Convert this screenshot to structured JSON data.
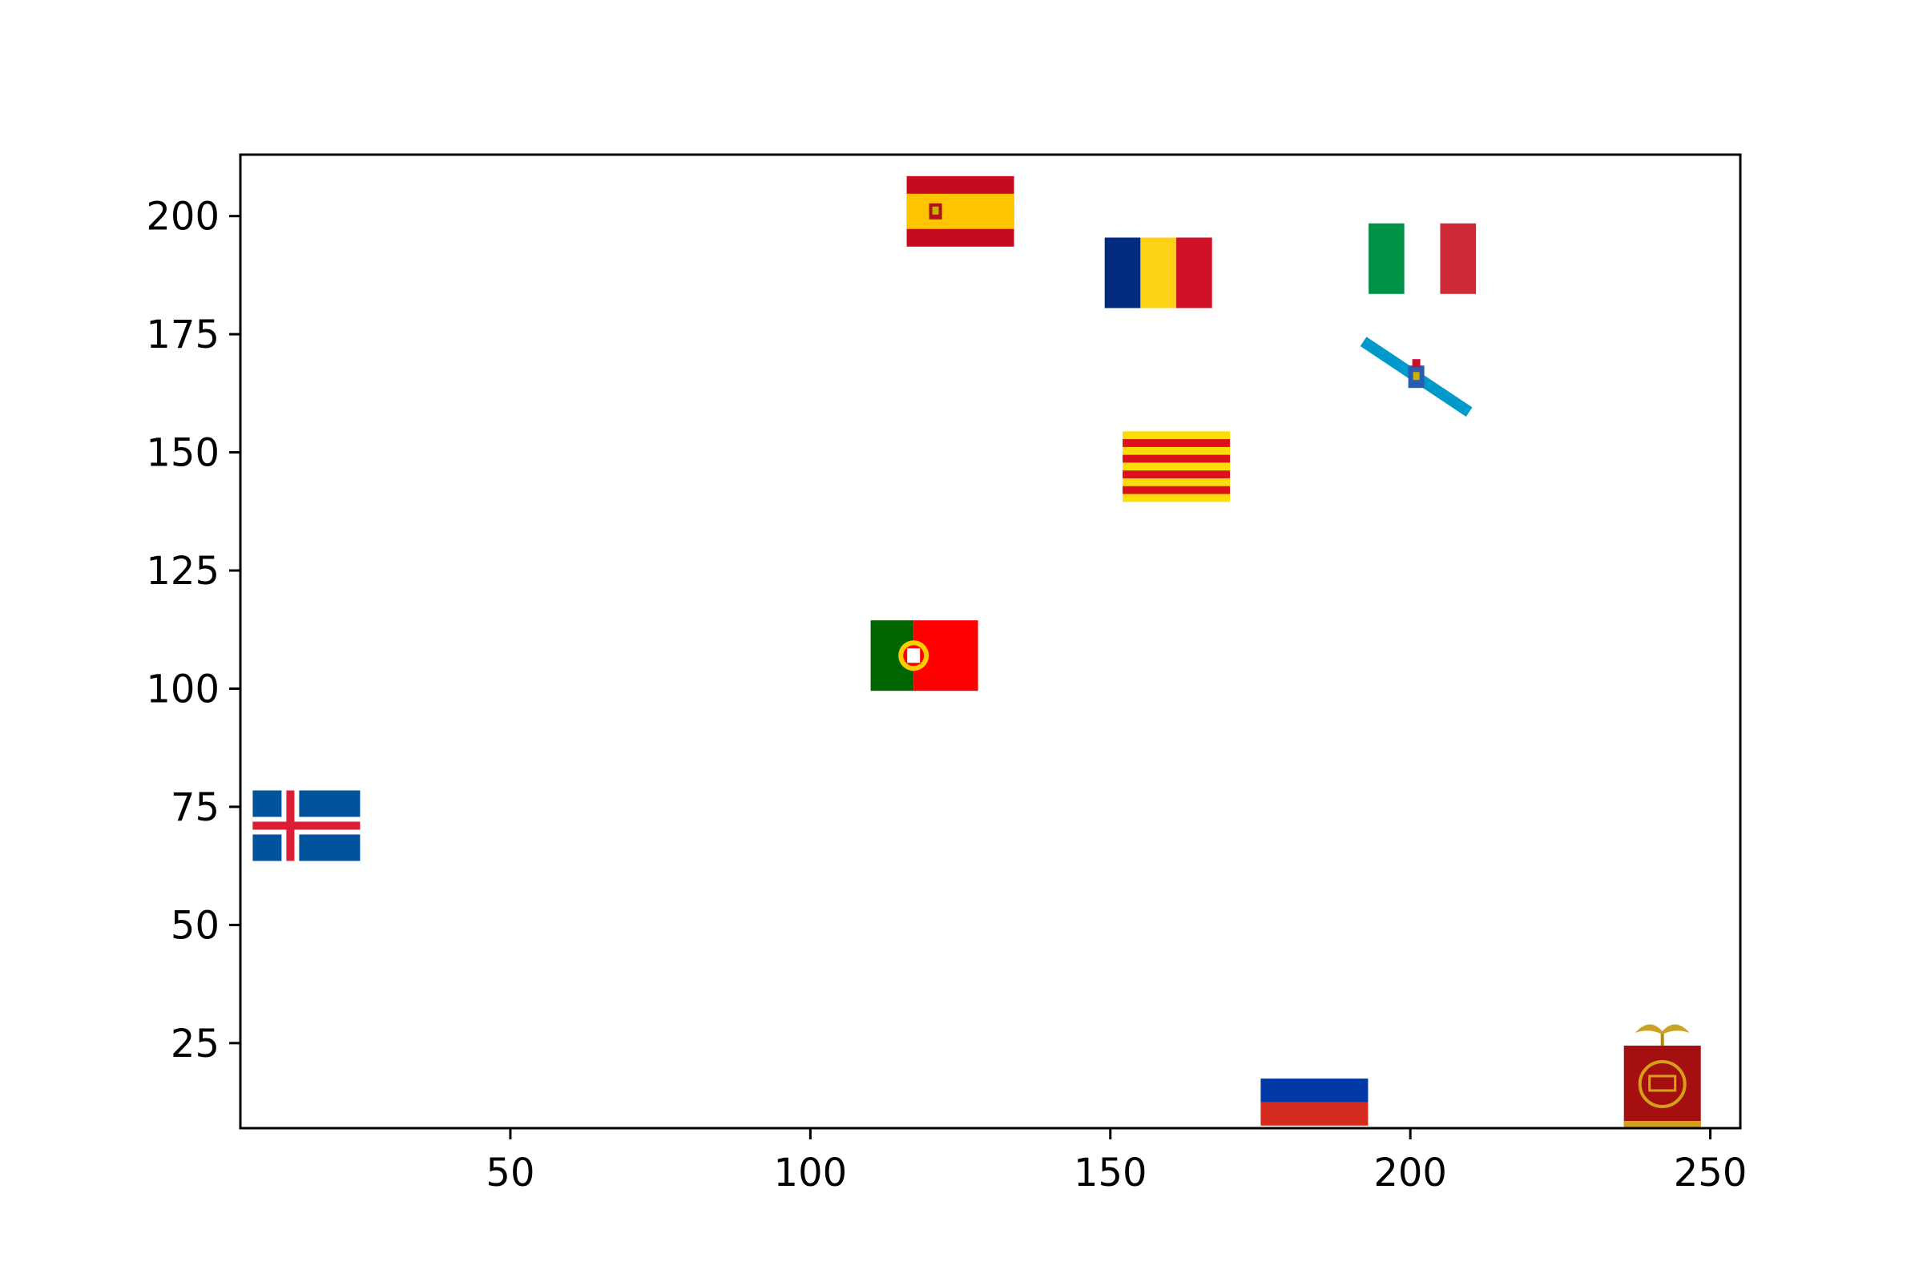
{
  "chart_data": {
    "type": "scatter",
    "title": "",
    "xlabel": "",
    "ylabel": "",
    "xlim": [
      5,
      255
    ],
    "ylim": [
      7,
      213
    ],
    "xticks": [
      50,
      100,
      150,
      200,
      250
    ],
    "yticks": [
      25,
      50,
      75,
      100,
      125,
      150,
      175,
      200
    ],
    "xtick_labels": [
      "50",
      "100",
      "150",
      "200",
      "250"
    ],
    "ytick_labels": [
      "25",
      "50",
      "75",
      "100",
      "125",
      "150",
      "175",
      "200"
    ],
    "grid": false,
    "points": [
      {
        "name": "spain-flag-marker",
        "icon": "spain-flag",
        "x": 125,
        "y": 201
      },
      {
        "name": "romania-flag-marker",
        "icon": "romania-flag",
        "x": 158,
        "y": 188
      },
      {
        "name": "italy-flag-marker",
        "icon": "italy-flag",
        "x": 202,
        "y": 191
      },
      {
        "name": "galicia-flag-marker",
        "icon": "galicia-flag",
        "x": 201,
        "y": 166
      },
      {
        "name": "catalonia-flag-marker",
        "icon": "catalonia-flag",
        "x": 161,
        "y": 147
      },
      {
        "name": "portugal-flag-marker",
        "icon": "portugal-flag",
        "x": 119,
        "y": 107
      },
      {
        "name": "iceland-flag-marker",
        "icon": "iceland-flag",
        "x": 16,
        "y": 71
      },
      {
        "name": "russia-flag-marker",
        "icon": "russia-flag",
        "x": 184,
        "y": 15
      },
      {
        "name": "roman-vexillum-marker",
        "icon": "roman-vexillum",
        "x": 242,
        "y": 17
      }
    ]
  }
}
